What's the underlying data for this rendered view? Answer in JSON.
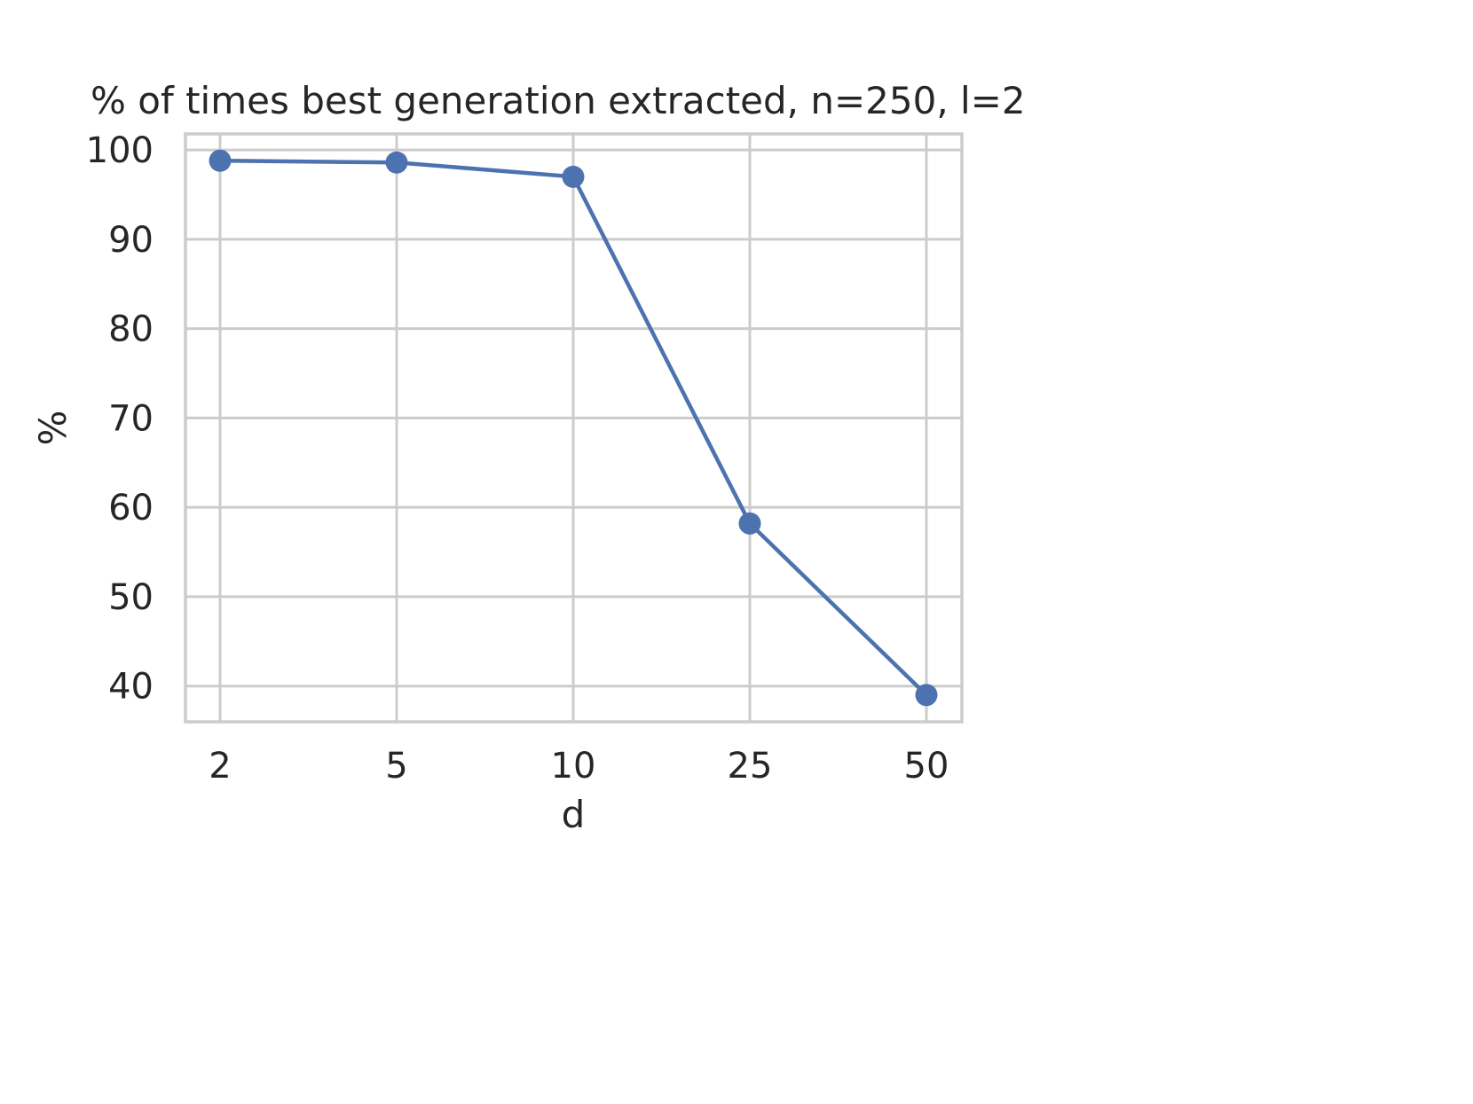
{
  "chart_data": {
    "type": "line",
    "title": "% of times best generation extracted, n=250, l=2",
    "xlabel": "d",
    "ylabel": "%",
    "categories": [
      "2",
      "5",
      "10",
      "25",
      "50"
    ],
    "series": [
      {
        "values": [
          98.8,
          98.6,
          97.0,
          58.2,
          39.0
        ]
      }
    ],
    "ylim": [
      36,
      101.8
    ],
    "yticks": [
      40,
      50,
      60,
      70,
      80,
      90,
      100
    ],
    "grid": true,
    "legend": "none",
    "colors": {
      "line": "#4c72b0",
      "grid": "#cccccc",
      "spine": "#cccccc",
      "text": "#262626"
    }
  }
}
